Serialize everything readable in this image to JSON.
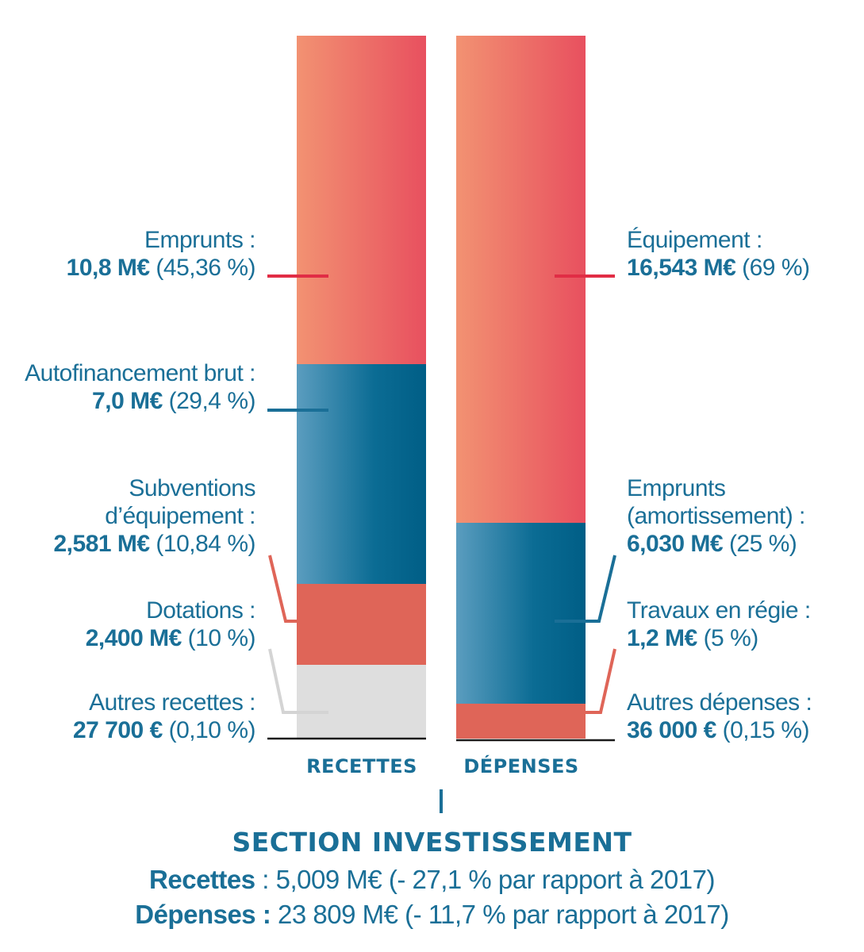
{
  "chart_data": {
    "type": "bar",
    "stacked": true,
    "categories": [
      "RECETTES",
      "DÉPENSES"
    ],
    "series_recettes": [
      {
        "label": "Emprunts :",
        "amount": "10,8 M€",
        "pct": "(45,36 %)",
        "value": 45.36,
        "color": "#ef6d5f"
      },
      {
        "label": "Autofinancement brut :",
        "amount": "7,0 M€",
        "pct": "(29,4 %)",
        "value": 29.4,
        "color": "#1a6f97"
      },
      {
        "label": "Subventions d'équipement :",
        "amount": "2,581 M€",
        "pct": "(10,84 %)",
        "value": 10.84,
        "color": "#1a6f97"
      },
      {
        "label": "Dotations :",
        "amount": "2,400 M€",
        "pct": "(10 %)",
        "value": 10,
        "color": "#df6558"
      },
      {
        "label": "Autres recettes :",
        "amount": "27 700 €",
        "pct": "(0,10 %)",
        "value": 0.1,
        "color": "#dedede"
      }
    ],
    "series_depenses": [
      {
        "label": "Équipement :",
        "amount": "16,543 M€",
        "pct": "(69 %)",
        "value": 69,
        "color": "#ef6d5f"
      },
      {
        "label": "Emprunts (amortissement) :",
        "amount": "6,030 M€",
        "pct": "(25 %)",
        "value": 25,
        "color": "#1a6f97"
      },
      {
        "label": "Travaux en régie :",
        "amount": "1,2 M€",
        "pct": "(5 %)",
        "value": 5,
        "color": "#1a6f97"
      },
      {
        "label": "Autres dépenses :",
        "amount": "36 000 €",
        "pct": "(0,15 %)",
        "value": 0.15,
        "color": "#df6558"
      }
    ]
  },
  "labels_left": [
    {
      "line1": "Emprunts :",
      "amount": "10,8 M€",
      "pct": "(45,36 %)"
    },
    {
      "line1": "Autofinancement brut :",
      "amount": "7,0 M€",
      "pct": "(29,4 %)"
    },
    {
      "line1": "Subventions",
      "line2": "d’équipement :",
      "amount": "2,581 M€",
      "pct": "(10,84 %)"
    },
    {
      "line1": "Dotations :",
      "amount": "2,400 M€",
      "pct": "(10 %)"
    },
    {
      "line1": "Autres recettes :",
      "amount": "27 700 €",
      "pct": "(0,10 %)"
    }
  ],
  "labels_right": [
    {
      "line1": "Équipement :",
      "amount": "16,543 M€",
      "pct": "(69 %)"
    },
    {
      "line1": "Emprunts",
      "line2": "(amortissement) :",
      "amount": "6,030 M€",
      "pct": "(25 %)"
    },
    {
      "line1": "Travaux en régie :",
      "amount": "1,2 M€",
      "pct": "(5 %)"
    },
    {
      "line1": "Autres dépenses :",
      "amount": "36 000 €",
      "pct": "(0,15 %)"
    }
  ],
  "axis": {
    "recettes": "RECETTES",
    "depenses": "DÉPENSES"
  },
  "section_title": "SECTION INVESTISSEMENT",
  "summary": {
    "recettes_label": "Recettes",
    "recettes_text": " : 5,009 M€ (- 27,1 % par rapport à 2017)",
    "depenses_label": "Dépenses :",
    "depenses_text": " 23 809 M€ (- 11,7 % par rapport à 2017)"
  },
  "colors": {
    "blue": "#1a6f97",
    "coral": "#ef6d5f",
    "red": "#e8414f",
    "grey": "#dedede"
  }
}
